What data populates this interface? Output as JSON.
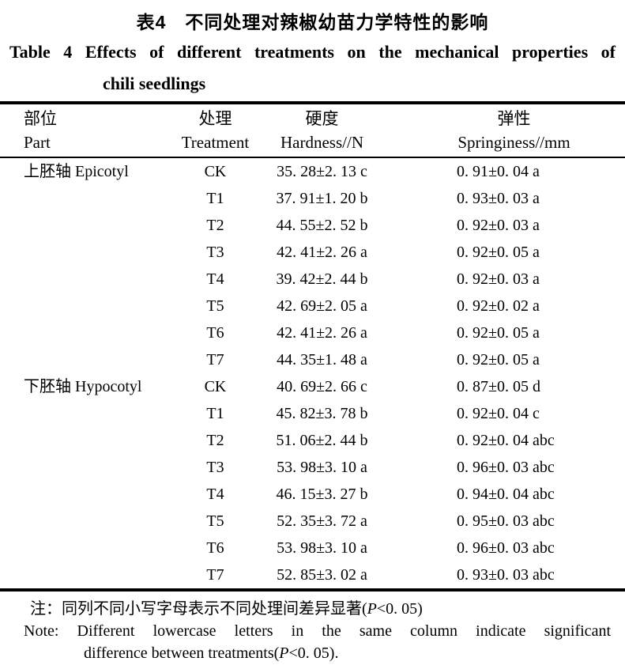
{
  "title": {
    "zh": "表4　不同处理对辣椒幼苗力学特性的影响",
    "en_line1": "Table 4  Effects of different treatments on the mechanical properties of",
    "en_line2": "chili seedlings"
  },
  "table": {
    "columns": [
      {
        "zh": "部位",
        "en": "Part"
      },
      {
        "zh": "处理",
        "en": "Treatment"
      },
      {
        "zh": "硬度",
        "en": "Hardness//N"
      },
      {
        "zh": "弹性",
        "en": "Springiness//mm"
      }
    ],
    "rows": [
      {
        "part": "上胚轴 Epicotyl",
        "treatment": "CK",
        "hardness": "35. 28±2. 13 c",
        "springiness": "0. 91±0. 04 a"
      },
      {
        "part": "",
        "treatment": "T1",
        "hardness": "37. 91±1. 20 b",
        "springiness": "0. 93±0. 03 a"
      },
      {
        "part": "",
        "treatment": "T2",
        "hardness": "44. 55±2. 52 b",
        "springiness": "0. 92±0. 03 a"
      },
      {
        "part": "",
        "treatment": "T3",
        "hardness": "42. 41±2. 26 a",
        "springiness": "0. 92±0. 05 a"
      },
      {
        "part": "",
        "treatment": "T4",
        "hardness": "39. 42±2. 44 b",
        "springiness": "0. 92±0. 03 a"
      },
      {
        "part": "",
        "treatment": "T5",
        "hardness": "42. 69±2. 05 a",
        "springiness": "0. 92±0. 02 a"
      },
      {
        "part": "",
        "treatment": "T6",
        "hardness": "42. 41±2. 26 a",
        "springiness": "0. 92±0. 05 a"
      },
      {
        "part": "",
        "treatment": "T7",
        "hardness": "44. 35±1. 48 a",
        "springiness": "0. 92±0. 05 a"
      },
      {
        "part": "下胚轴 Hypocotyl",
        "treatment": "CK",
        "hardness": "40. 69±2. 66 c",
        "springiness": "0. 87±0. 05 d"
      },
      {
        "part": "",
        "treatment": "T1",
        "hardness": "45. 82±3. 78 b",
        "springiness": "0. 92±0. 04 c"
      },
      {
        "part": "",
        "treatment": "T2",
        "hardness": "51. 06±2. 44 b",
        "springiness": "0. 92±0. 04 abc"
      },
      {
        "part": "",
        "treatment": "T3",
        "hardness": "53. 98±3. 10 a",
        "springiness": "0. 96±0. 03 abc"
      },
      {
        "part": "",
        "treatment": "T4",
        "hardness": "46. 15±3. 27 b",
        "springiness": "0. 94±0. 04 abc"
      },
      {
        "part": "",
        "treatment": "T5",
        "hardness": "52. 35±3. 72 a",
        "springiness": "0. 95±0. 03 abc"
      },
      {
        "part": "",
        "treatment": "T6",
        "hardness": "53. 98±3. 10 a",
        "springiness": "0. 96±0. 03 abc"
      },
      {
        "part": "",
        "treatment": "T7",
        "hardness": "52. 85±3. 02 a",
        "springiness": "0. 93±0. 03 abc"
      }
    ]
  },
  "footnotes": {
    "zh_prefix": "注：同列不同小写字母表示不同处理间差异显著(",
    "zh_p": "P",
    "zh_suffix": "<0. 05)",
    "en_line1": "Note: Different lowercase letters in the same column indicate significant",
    "en_line2_prefix": "difference between treatments(",
    "en_p": "P",
    "en_line2_suffix": "<0. 05)."
  }
}
